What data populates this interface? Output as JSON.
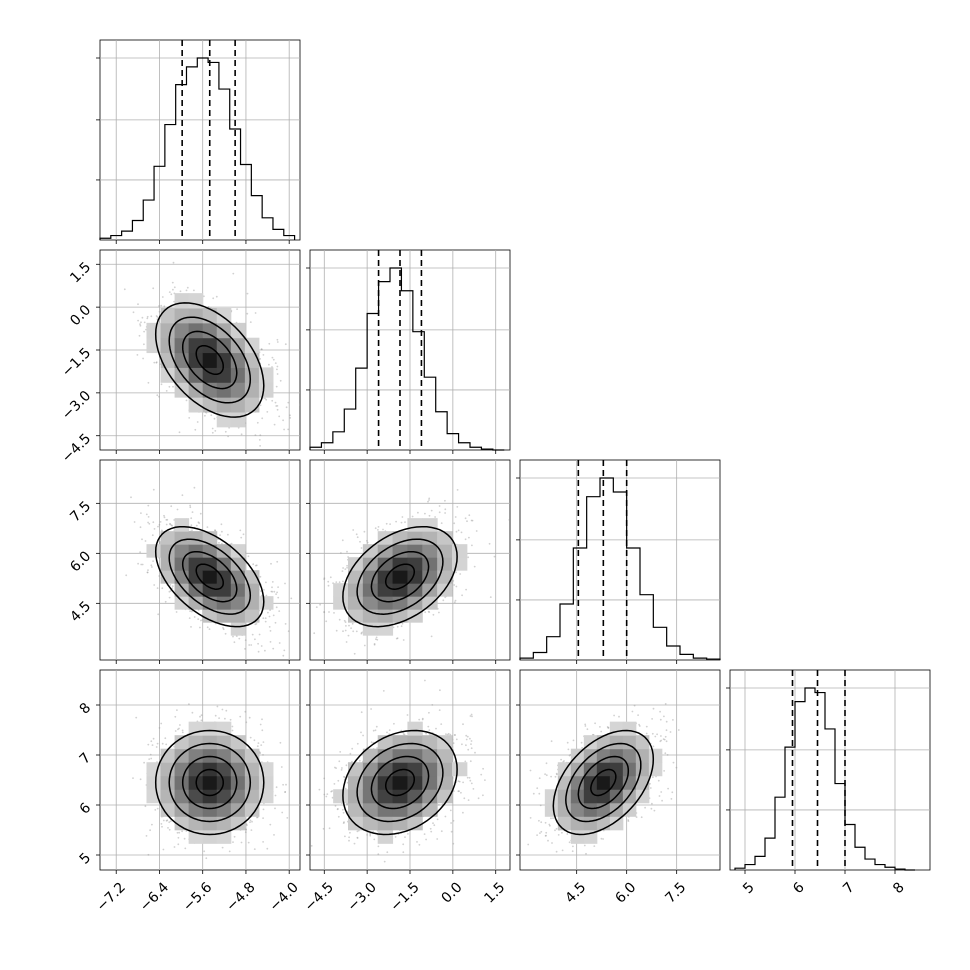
{
  "chart_data": {
    "type": "scatter",
    "title": "",
    "grid": true,
    "parameters": [
      {
        "range": [
          -7.5,
          -3.8
        ],
        "ticks": [
          -7.2,
          -6.4,
          -5.6,
          -4.8,
          -4.0
        ],
        "tick_labels": [
          "−7.2",
          "−6.4",
          "−5.6",
          "−4.8",
          "−4.0"
        ],
        "quantiles": [
          -5.98,
          -5.47,
          -5.0
        ],
        "hist_bins": [
          -7.5,
          -7.3,
          -7.1,
          -6.9,
          -6.7,
          -6.5,
          -6.3,
          -6.1,
          -5.9,
          -5.7,
          -5.5,
          -5.3,
          -5.1,
          -4.9,
          -4.7,
          -4.5,
          -4.3,
          -4.1,
          -3.9
        ],
        "hist_counts": [
          2,
          5,
          10,
          22,
          45,
          83,
          130,
          175,
          195,
          205,
          200,
          170,
          125,
          85,
          50,
          25,
          12,
          5
        ]
      },
      {
        "range": [
          -5.0,
          2.0
        ],
        "ticks": [
          -4.5,
          -3.0,
          -1.5,
          0.0,
          1.5
        ],
        "tick_labels": [
          "−4.5",
          "−3.0",
          "−1.5",
          "0.0",
          "1.5"
        ],
        "quantiles": [
          -2.6,
          -1.85,
          -1.1
        ],
        "hist_bins": [
          -5.0,
          -4.6,
          -4.2,
          -3.8,
          -3.4,
          -3.0,
          -2.6,
          -2.2,
          -1.8,
          -1.4,
          -1.0,
          -0.6,
          -0.2,
          0.2,
          0.6,
          1.0,
          1.4,
          1.8
        ],
        "hist_counts": [
          3,
          8,
          20,
          45,
          90,
          150,
          185,
          200,
          175,
          130,
          80,
          42,
          18,
          8,
          3,
          1,
          0
        ]
      },
      {
        "range": [
          2.8,
          8.8
        ],
        "ticks": [
          4.5,
          6.0,
          7.5
        ],
        "tick_labels": [
          "4.5",
          "6.0",
          "7.5"
        ],
        "quantiles": [
          4.55,
          5.3,
          6.0
        ],
        "hist_bins": [
          2.8,
          3.2,
          3.6,
          4.0,
          4.4,
          4.8,
          5.2,
          5.6,
          6.0,
          6.4,
          6.8,
          7.2,
          7.6,
          8.0,
          8.4,
          8.8
        ],
        "hist_counts": [
          2,
          8,
          25,
          60,
          120,
          175,
          195,
          180,
          120,
          70,
          35,
          15,
          6,
          2,
          1
        ]
      },
      {
        "range": [
          4.7,
          8.7
        ],
        "ticks": [
          5,
          6,
          7,
          8
        ],
        "tick_labels": [
          "5",
          "6",
          "7",
          "8"
        ],
        "quantiles": [
          5.95,
          6.45,
          7.0
        ],
        "hist_bins": [
          4.8,
          5.0,
          5.2,
          5.4,
          5.6,
          5.8,
          6.0,
          6.2,
          6.4,
          6.6,
          6.8,
          7.0,
          7.2,
          7.4,
          7.6,
          7.8,
          8.0,
          8.2,
          8.4
        ],
        "hist_counts": [
          2,
          6,
          15,
          35,
          80,
          135,
          185,
          200,
          195,
          155,
          95,
          50,
          25,
          12,
          6,
          3,
          1,
          0
        ]
      }
    ],
    "correlations": [
      {
        "row": 1,
        "col": 0,
        "mean": [
          -5.47,
          -1.85
        ],
        "sd": [
          0.5,
          1.0
        ],
        "rho": -0.45
      },
      {
        "row": 2,
        "col": 0,
        "mean": [
          -5.47,
          5.3
        ],
        "sd": [
          0.5,
          0.75
        ],
        "rho": -0.5
      },
      {
        "row": 2,
        "col": 1,
        "mean": [
          -1.85,
          5.3
        ],
        "sd": [
          1.0,
          0.75
        ],
        "rho": 0.4
      },
      {
        "row": 3,
        "col": 0,
        "mean": [
          -5.47,
          6.45
        ],
        "sd": [
          0.5,
          0.52
        ],
        "rho": 0.0
      },
      {
        "row": 3,
        "col": 1,
        "mean": [
          -1.85,
          6.45
        ],
        "sd": [
          1.0,
          0.52
        ],
        "rho": 0.25
      },
      {
        "row": 3,
        "col": 2,
        "mean": [
          5.3,
          6.45
        ],
        "sd": [
          0.75,
          0.52
        ],
        "rho": 0.45
      }
    ]
  }
}
